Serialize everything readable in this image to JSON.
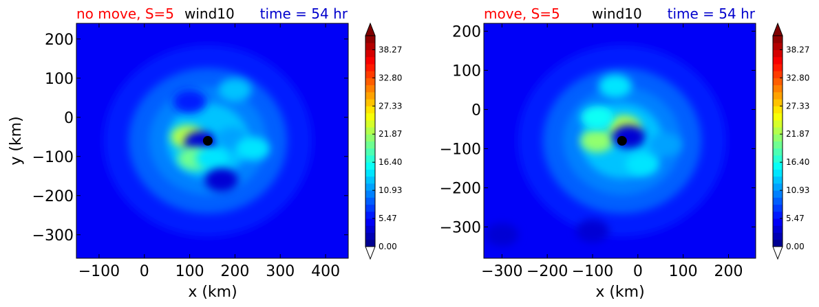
{
  "chart_data": [
    {
      "type": "heatmap",
      "title": {
        "left": "no move, S=5",
        "center": "wind10",
        "right": "time = 54 hr"
      },
      "title_colors": {
        "left": "#ff0000",
        "center": "#000000",
        "right": "#0000cc"
      },
      "xlabel": "x (km)",
      "ylabel": "y (km)",
      "xlim": [
        -150,
        450
      ],
      "ylim": [
        -360,
        240
      ],
      "xticks": [
        -100,
        0,
        100,
        200,
        300,
        400
      ],
      "xtick_labels": [
        "−100",
        "0",
        "100",
        "200",
        "300",
        "400"
      ],
      "yticks": [
        200,
        100,
        0,
        -100,
        -200,
        -300
      ],
      "ytick_labels": [
        "200",
        "100",
        "0",
        "−100",
        "−200",
        "−300"
      ],
      "center_marker": {
        "x": 140,
        "y": -60,
        "color": "#000000"
      },
      "colorbar": {
        "min": 0,
        "max": 41,
        "ticks": [
          0.0,
          5.47,
          10.93,
          16.4,
          21.87,
          27.33,
          32.8,
          38.27
        ],
        "tick_labels": [
          "0.00",
          "5.47",
          "10.93",
          "16.40",
          "21.87",
          "27.33",
          "32.80",
          "38.27"
        ],
        "extend": "both",
        "colormap": "jet"
      },
      "field_features": [
        {
          "x": 95,
          "y": -50,
          "value": 22
        },
        {
          "x": 125,
          "y": -65,
          "value": 4
        },
        {
          "x": 110,
          "y": -105,
          "value": 20
        },
        {
          "x": 195,
          "y": -55,
          "value": 12
        },
        {
          "x": 150,
          "y": -105,
          "value": 15
        },
        {
          "x": 240,
          "y": -80,
          "value": 15
        },
        {
          "x": 170,
          "y": -160,
          "value": 4
        },
        {
          "x": 200,
          "y": 70,
          "value": 13
        },
        {
          "x": 100,
          "y": 40,
          "value": 6
        }
      ]
    },
    {
      "type": "heatmap",
      "title": {
        "left": "move, S=5",
        "center": "wind10",
        "right": "time = 54 hr"
      },
      "title_colors": {
        "left": "#ff0000",
        "center": "#000000",
        "right": "#0000cc"
      },
      "xlabel": "x (km)",
      "ylabel": "",
      "xlim": [
        -340,
        260
      ],
      "ylim": [
        -380,
        220
      ],
      "xticks": [
        -300,
        -200,
        -100,
        0,
        100,
        200
      ],
      "xtick_labels": [
        "−300",
        "−200",
        "−100",
        "0",
        "100",
        "200"
      ],
      "yticks": [
        200,
        100,
        0,
        -100,
        -200,
        -300
      ],
      "ytick_labels": [
        "200",
        "100",
        "0",
        "−100",
        "−200",
        "−300"
      ],
      "center_marker": {
        "x": -35,
        "y": -80,
        "color": "#000000"
      },
      "colorbar": {
        "min": 0,
        "max": 41,
        "ticks": [
          0.0,
          5.47,
          10.93,
          16.4,
          21.87,
          27.33,
          32.8,
          38.27
        ],
        "tick_labels": [
          "0.00",
          "5.47",
          "10.93",
          "16.40",
          "21.87",
          "27.33",
          "32.80",
          "38.27"
        ],
        "extend": "both",
        "colormap": "jet"
      },
      "field_features": [
        {
          "x": -90,
          "y": -80,
          "value": 21
        },
        {
          "x": -30,
          "y": -45,
          "value": 22
        },
        {
          "x": -20,
          "y": -70,
          "value": 3
        },
        {
          "x": -90,
          "y": -20,
          "value": 16
        },
        {
          "x": 10,
          "y": -140,
          "value": 14
        },
        {
          "x": 60,
          "y": -90,
          "value": 12
        },
        {
          "x": -50,
          "y": 60,
          "value": 14
        },
        {
          "x": -300,
          "y": -320,
          "value": 3
        },
        {
          "x": -100,
          "y": -310,
          "value": 4
        }
      ]
    }
  ]
}
